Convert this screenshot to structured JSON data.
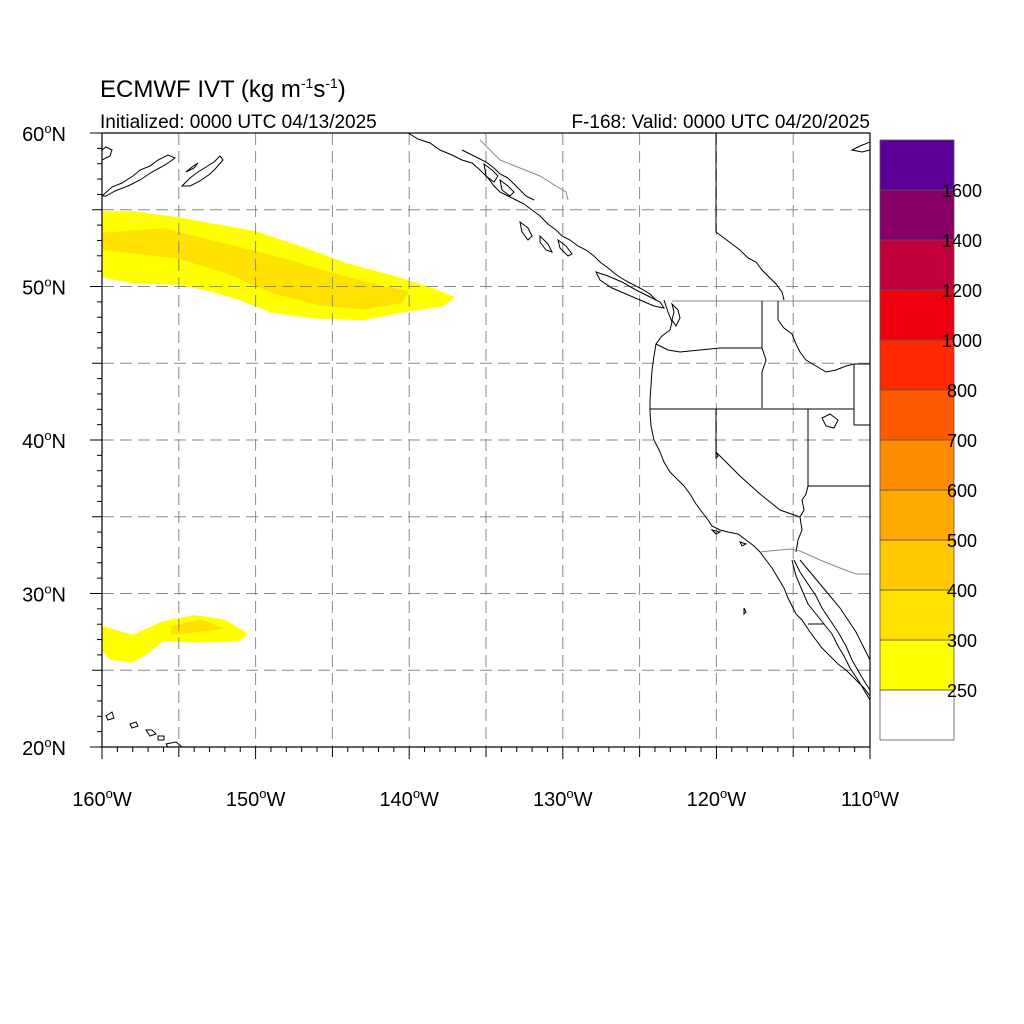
{
  "title": "ECMWF IVT (kg m",
  "title_sup1": "-1",
  "title_mid": "s",
  "title_sup2": "-1",
  "title_end": ")",
  "subtitle_left": "Initialized: 0000 UTC 04/13/2025",
  "subtitle_right": "F-168: Valid: 0000 UTC 04/20/2025",
  "map": {
    "lon_range": [
      -160,
      -110
    ],
    "lat_range": [
      20,
      60
    ],
    "lat_ticks": [
      {
        "value": 60,
        "label": "60"
      },
      {
        "value": 50,
        "label": "50"
      },
      {
        "value": 40,
        "label": "40"
      },
      {
        "value": 30,
        "label": "30"
      },
      {
        "value": 20,
        "label": "20"
      }
    ],
    "lat_suffix": "N",
    "lon_ticks": [
      {
        "value": -160,
        "label": "160"
      },
      {
        "value": -150,
        "label": "150"
      },
      {
        "value": -140,
        "label": "140"
      },
      {
        "value": -130,
        "label": "130"
      },
      {
        "value": -120,
        "label": "120"
      },
      {
        "value": -110,
        "label": "110"
      }
    ],
    "lon_suffix": "W",
    "degree_symbol": "o",
    "gridlines_every_deg": 5,
    "gridline_style": "dashed",
    "ivt_regions": [
      {
        "level": 250,
        "lonlat": [
          [
            -160,
            54.9
          ],
          [
            -158,
            54.9
          ],
          [
            -155,
            54.5
          ],
          [
            -150,
            53.6
          ],
          [
            -147,
            52.6
          ],
          [
            -144,
            51.5
          ],
          [
            -141,
            50.7
          ],
          [
            -138.5,
            49.9
          ],
          [
            -137,
            49.3
          ],
          [
            -137.8,
            48.7
          ],
          [
            -140,
            48.4
          ],
          [
            -143,
            47.8
          ],
          [
            -146,
            47.9
          ],
          [
            -149,
            48.3
          ],
          [
            -151,
            49.1
          ],
          [
            -153,
            49.7
          ],
          [
            -155,
            50.1
          ],
          [
            -158,
            50.2
          ],
          [
            -160,
            50.6
          ]
        ]
      },
      {
        "level": 300,
        "lonlat": [
          [
            -160,
            53.5
          ],
          [
            -156,
            53.8
          ],
          [
            -152,
            52.8
          ],
          [
            -148,
            51.8
          ],
          [
            -145,
            50.9
          ],
          [
            -142,
            50.1
          ],
          [
            -140,
            49.7
          ],
          [
            -140.5,
            48.9
          ],
          [
            -143,
            48.5
          ],
          [
            -146,
            48.8
          ],
          [
            -149,
            49.6
          ],
          [
            -152,
            50.9
          ],
          [
            -155,
            51.8
          ],
          [
            -160,
            52.4
          ]
        ]
      },
      {
        "level": 250,
        "lonlat": [
          [
            -160,
            27.9
          ],
          [
            -158,
            27.3
          ],
          [
            -156,
            28.2
          ],
          [
            -154,
            28.6
          ],
          [
            -152,
            28.3
          ],
          [
            -150.5,
            27.4
          ],
          [
            -151,
            26.9
          ],
          [
            -153.5,
            26.8
          ],
          [
            -156,
            26.9
          ],
          [
            -157,
            26.1
          ],
          [
            -158,
            25.5
          ],
          [
            -159.5,
            25.7
          ],
          [
            -160,
            26.3
          ]
        ]
      },
      {
        "level": 300,
        "lonlat": [
          [
            -155.5,
            27.9
          ],
          [
            -153.5,
            28.3
          ],
          [
            -152,
            27.7
          ],
          [
            -154.5,
            27.4
          ],
          [
            -155.5,
            27.3
          ]
        ]
      }
    ],
    "states": [
      "WA",
      "OR",
      "CA",
      "ID",
      "NV",
      "AZ",
      "UT"
    ]
  },
  "colorbar": {
    "levels": [
      "250",
      "300",
      "400",
      "500",
      "600",
      "700",
      "800",
      "1000",
      "1200",
      "1400",
      "1600"
    ],
    "colors": [
      "#ffffff",
      "#ffff00",
      "#ffe100",
      "#ffc800",
      "#ffaa00",
      "#ff8c00",
      "#ff5a00",
      "#ff2800",
      "#ee0010",
      "#c2003c",
      "#880066",
      "#5a0099"
    ]
  }
}
